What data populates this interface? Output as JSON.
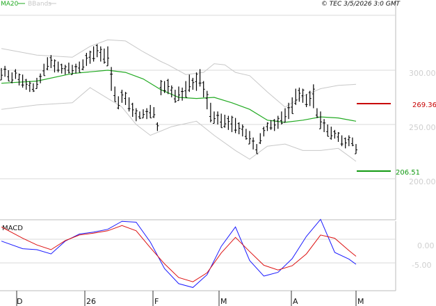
{
  "header": {
    "timestamp": "© TEC 3/5/2026 3:0 GMT",
    "legend_ma": "MA20",
    "legend_bb": "BBands"
  },
  "macd_label": "MACD",
  "colors": {
    "price_bar": "#000000",
    "ma": "#22aa22",
    "bbands": "#c8c8c8",
    "grid": "#d8d8d8",
    "macd": "#1a1aff",
    "signal": "#dd1111",
    "resistance": "#c80000",
    "support": "#119911",
    "axis_text": "#cfcfcf"
  },
  "levels": {
    "resistance": "269.36",
    "support": "206.51"
  },
  "chart_data": [
    {
      "type": "ohlc",
      "yticks": [
        "300.00",
        "250.00",
        "200.00"
      ],
      "xticks": [
        "D",
        "26",
        "F",
        "M",
        "A",
        "M"
      ],
      "ylim": [
        172,
        359
      ],
      "bars": [
        [
          302,
          291
        ],
        [
          304,
          294
        ],
        [
          300,
          290
        ],
        [
          298,
          288
        ],
        [
          301,
          292
        ],
        [
          297,
          286
        ],
        [
          296,
          284
        ],
        [
          292,
          282
        ],
        [
          290,
          280
        ],
        [
          288,
          280
        ],
        [
          293,
          283
        ],
        [
          297,
          288
        ],
        [
          306,
          295
        ],
        [
          312,
          300
        ],
        [
          314,
          302
        ],
        [
          310,
          298
        ],
        [
          308,
          298
        ],
        [
          306,
          297
        ],
        [
          305,
          296
        ],
        [
          307,
          297
        ],
        [
          305,
          296
        ],
        [
          306,
          297
        ],
        [
          308,
          298
        ],
        [
          310,
          300
        ],
        [
          316,
          304
        ],
        [
          318,
          306
        ],
        [
          322,
          308
        ],
        [
          324,
          312
        ],
        [
          322,
          308
        ],
        [
          320,
          306
        ],
        [
          322,
          304
        ],
        [
          303,
          281
        ],
        [
          285,
          271
        ],
        [
          276,
          264
        ],
        [
          282,
          270
        ],
        [
          280,
          268
        ],
        [
          275,
          262
        ],
        [
          270,
          257
        ],
        [
          265,
          253
        ],
        [
          262,
          255
        ],
        [
          264,
          256
        ],
        [
          265,
          255
        ],
        [
          268,
          256
        ],
        [
          266,
          256
        ],
        [
          252,
          244
        ],
        [
          291,
          277
        ],
        [
          290,
          279
        ],
        [
          292,
          278
        ],
        [
          286,
          275
        ],
        [
          282,
          270
        ],
        [
          285,
          272
        ],
        [
          284,
          272
        ],
        [
          290,
          275
        ],
        [
          296,
          280
        ],
        [
          293,
          282
        ],
        [
          298,
          281
        ],
        [
          301,
          285
        ],
        [
          290,
          275
        ],
        [
          281,
          264
        ],
        [
          270,
          252
        ],
        [
          262,
          251
        ],
        [
          262,
          250
        ],
        [
          260,
          247
        ],
        [
          259,
          247
        ],
        [
          258,
          245
        ],
        [
          258,
          243
        ],
        [
          256,
          242
        ],
        [
          252,
          241
        ],
        [
          250,
          239
        ],
        [
          246,
          236
        ],
        [
          244,
          232
        ],
        [
          238,
          227
        ],
        [
          232,
          223
        ],
        [
          242,
          232
        ],
        [
          248,
          239
        ],
        [
          252,
          244
        ],
        [
          254,
          245
        ],
        [
          255,
          244
        ],
        [
          258,
          246
        ],
        [
          262,
          250
        ],
        [
          265,
          252
        ],
        [
          270,
          255
        ],
        [
          275,
          260
        ],
        [
          283,
          268
        ],
        [
          284,
          271
        ],
        [
          283,
          270
        ],
        [
          278,
          266
        ],
        [
          281,
          267
        ],
        [
          287,
          265
        ],
        [
          265,
          256
        ],
        [
          262,
          246
        ],
        [
          255,
          243
        ],
        [
          250,
          239
        ],
        [
          248,
          236
        ],
        [
          245,
          237
        ],
        [
          243,
          234
        ],
        [
          240,
          230
        ],
        [
          238,
          228
        ],
        [
          240,
          230
        ],
        [
          238,
          230
        ],
        [
          232,
          223
        ]
      ],
      "ma20": [
        [
          0,
          288
        ],
        [
          10,
          290
        ],
        [
          20,
          297
        ],
        [
          30,
          300
        ],
        [
          35,
          298
        ],
        [
          40,
          292
        ],
        [
          45,
          282
        ],
        [
          50,
          275
        ],
        [
          55,
          274
        ],
        [
          60,
          275
        ],
        [
          65,
          270
        ],
        [
          70,
          264
        ],
        [
          75,
          254
        ],
        [
          80,
          252
        ],
        [
          85,
          254
        ],
        [
          90,
          257
        ],
        [
          95,
          256
        ],
        [
          100,
          253
        ]
      ],
      "bb_upper": [
        [
          0,
          320
        ],
        [
          10,
          314
        ],
        [
          20,
          312
        ],
        [
          25,
          322
        ],
        [
          30,
          328
        ],
        [
          35,
          327
        ],
        [
          40,
          317
        ],
        [
          45,
          308
        ],
        [
          47,
          305
        ],
        [
          52,
          296
        ],
        [
          57,
          298
        ],
        [
          60,
          306
        ],
        [
          63,
          305
        ],
        [
          66,
          298
        ],
        [
          70,
          295
        ],
        [
          75,
          280
        ],
        [
          80,
          266
        ],
        [
          85,
          276
        ],
        [
          90,
          283
        ],
        [
          95,
          286
        ],
        [
          100,
          287
        ]
      ],
      "bb_lower": [
        [
          0,
          264
        ],
        [
          10,
          268
        ],
        [
          20,
          270
        ],
        [
          25,
          284
        ],
        [
          30,
          274
        ],
        [
          34,
          266
        ],
        [
          38,
          250
        ],
        [
          42,
          240
        ],
        [
          45,
          244
        ],
        [
          48,
          248
        ],
        [
          55,
          253
        ],
        [
          60,
          240
        ],
        [
          66,
          226
        ],
        [
          70,
          218
        ],
        [
          75,
          230
        ],
        [
          80,
          232
        ],
        [
          85,
          226
        ],
        [
          90,
          226
        ],
        [
          95,
          228
        ],
        [
          100,
          216
        ]
      ]
    },
    {
      "type": "line",
      "title": "MACD",
      "yticks": [
        "0.00",
        "-5.00"
      ],
      "ylim": [
        -12,
        8
      ],
      "series": [
        {
          "key": "macd",
          "values": [
            [
              0,
              -0.4
            ],
            [
              6,
              -2
            ],
            [
              10,
              -2.2
            ],
            [
              14,
              -3.1
            ],
            [
              18,
              -0.4
            ],
            [
              22,
              1.1
            ],
            [
              26,
              1.5
            ],
            [
              30,
              2.1
            ],
            [
              34,
              3.8
            ],
            [
              38,
              3.6
            ],
            [
              42,
              -0.6
            ],
            [
              46,
              -6.2
            ],
            [
              50,
              -9.4
            ],
            [
              54,
              -10.2
            ],
            [
              58,
              -7.5
            ],
            [
              62,
              -1.5
            ],
            [
              66,
              2.6
            ],
            [
              70,
              -4.5
            ],
            [
              74,
              -7.8
            ],
            [
              78,
              -7.0
            ],
            [
              82,
              -4.1
            ],
            [
              86,
              0.6
            ],
            [
              90,
              4.2
            ],
            [
              94,
              -2.8
            ],
            [
              98,
              -4.2
            ],
            [
              100,
              -5.3
            ]
          ]
        },
        {
          "key": "signal",
          "values": [
            [
              0,
              2.6
            ],
            [
              6,
              0.2
            ],
            [
              10,
              -1.2
            ],
            [
              14,
              -2.2
            ],
            [
              18,
              -0.3
            ],
            [
              22,
              0.9
            ],
            [
              26,
              1.3
            ],
            [
              30,
              1.8
            ],
            [
              34,
              2.9
            ],
            [
              38,
              1.8
            ],
            [
              42,
              -1.8
            ],
            [
              46,
              -5.2
            ],
            [
              50,
              -8.1
            ],
            [
              54,
              -9.0
            ],
            [
              58,
              -7.1
            ],
            [
              62,
              -2.9
            ],
            [
              66,
              0.4
            ],
            [
              70,
              -2.6
            ],
            [
              74,
              -5.5
            ],
            [
              78,
              -6.5
            ],
            [
              82,
              -5.6
            ],
            [
              86,
              -3.1
            ],
            [
              90,
              0.9
            ],
            [
              94,
              0.2
            ],
            [
              98,
              -2.4
            ],
            [
              100,
              -3.6
            ]
          ]
        }
      ]
    }
  ]
}
